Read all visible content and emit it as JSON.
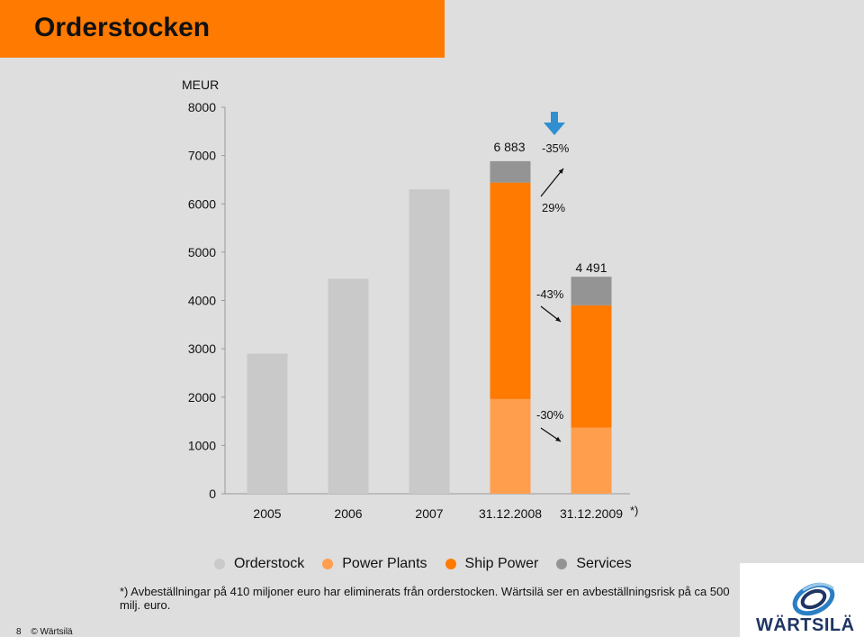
{
  "header": {
    "title": "Orderstocken"
  },
  "chart_data": {
    "type": "bar",
    "stacked": true,
    "ylabel": "MEUR",
    "ylim": [
      0,
      8000
    ],
    "yticks": [
      0,
      1000,
      2000,
      3000,
      4000,
      5000,
      6000,
      7000,
      8000
    ],
    "categories": [
      "2005",
      "2006",
      "2007",
      "31.12.2008",
      "31.12.2009"
    ],
    "category_note": {
      "category": "31.12.2009",
      "text": "*)"
    },
    "series": [
      {
        "name": "Orderstock",
        "color": "#c9c9c9",
        "values": [
          2900,
          4450,
          6300,
          0,
          0
        ]
      },
      {
        "name": "Power Plants",
        "color": "#ff9f4d",
        "values": [
          0,
          0,
          0,
          1960,
          1370
        ]
      },
      {
        "name": "Ship Power",
        "color": "#ff7a00",
        "values": [
          0,
          0,
          0,
          4480,
          2530
        ]
      },
      {
        "name": "Services",
        "color": "#949494",
        "values": [
          0,
          0,
          0,
          443,
          591
        ]
      }
    ],
    "totals": [
      {
        "category": "31.12.2008",
        "value": 6883,
        "label": "6 883"
      },
      {
        "category": "31.12.2009",
        "value": 4491,
        "label": "4 491"
      }
    ],
    "annotations": [
      {
        "text": "-35%",
        "arrow": "down",
        "arrow_color": "#2f8fd0"
      },
      {
        "text": "29%",
        "arrow": "up"
      },
      {
        "text": "-43%",
        "arrow": "down"
      },
      {
        "text": "-30%",
        "arrow": "down"
      }
    ],
    "legend": [
      "Orderstock",
      "Power Plants",
      "Ship Power",
      "Services"
    ],
    "legend_position": "bottom",
    "grid": false
  },
  "footnote": "*) Avbeställningar på 410 miljoner euro har eliminerats från orderstocken. Wärtsilä ser en avbeställningsrisk på ca 500 milj. euro.",
  "footer": {
    "page_number": "8",
    "copyright": "© Wärtsilä"
  },
  "logo": {
    "text": "WÄRTSILÄ",
    "icon": "wartsila-swirl-logo"
  }
}
